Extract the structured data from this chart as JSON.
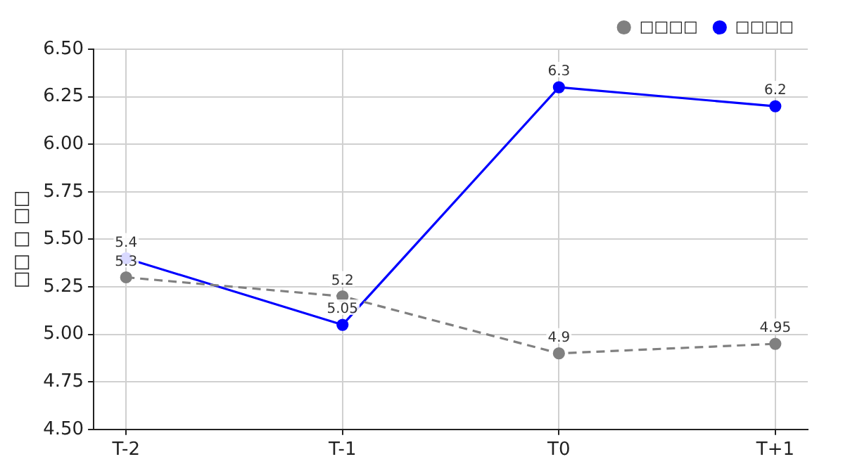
{
  "chart_data": {
    "type": "line",
    "ylabel": "□□ □ □□",
    "categories": [
      "T-2",
      "T-1",
      "T0",
      "T+1"
    ],
    "series": [
      {
        "name": "□□□□",
        "color": "#808080",
        "line_style": "dashed",
        "values": [
          5.3,
          5.2,
          4.9,
          4.95
        ]
      },
      {
        "name": "□□□□",
        "color": "#0000ff",
        "line_style": "solid",
        "values": [
          5.4,
          5.05,
          6.3,
          6.2
        ]
      }
    ],
    "ylim": [
      4.5,
      6.5
    ],
    "yticks": [
      {
        "value": 4.5,
        "label": "4.50"
      },
      {
        "value": 4.75,
        "label": "4.75"
      },
      {
        "value": 5,
        "label": "5.00"
      },
      {
        "value": 5.25,
        "label": "5.25"
      },
      {
        "value": 5.5,
        "label": "5.50"
      },
      {
        "value": 5.75,
        "label": "5.75"
      },
      {
        "value": 6,
        "label": "6.00"
      },
      {
        "value": 6.25,
        "label": "6.25"
      },
      {
        "value": 6.5,
        "label": "6.50"
      }
    ],
    "grid": true,
    "legend": "top right",
    "marker": "circle",
    "data_labels": true
  }
}
